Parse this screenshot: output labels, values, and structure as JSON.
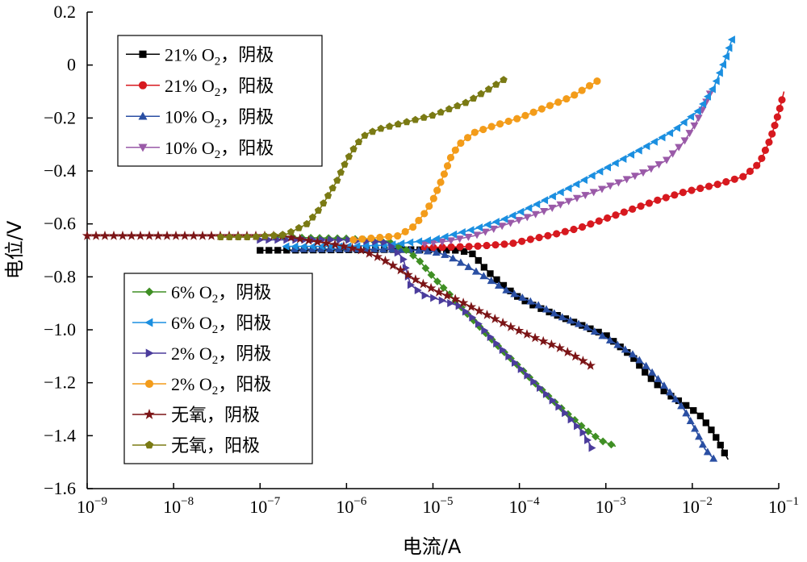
{
  "chart_data": {
    "type": "line",
    "xlabel": "电流/A",
    "ylabel": "电位/V",
    "x_scale": "log",
    "xlim": [
      1e-09,
      0.1
    ],
    "ylim": [
      -1.6,
      0.2
    ],
    "x_ticks": [
      {
        "value": 1e-09,
        "base": "10",
        "exp": "−9"
      },
      {
        "value": 1e-08,
        "base": "10",
        "exp": "−8"
      },
      {
        "value": 1e-07,
        "base": "10",
        "exp": "−7"
      },
      {
        "value": 1e-06,
        "base": "10",
        "exp": "−6"
      },
      {
        "value": 1e-05,
        "base": "10",
        "exp": "−5"
      },
      {
        "value": 0.0001,
        "base": "10",
        "exp": "−4"
      },
      {
        "value": 0.001,
        "base": "10",
        "exp": "−3"
      },
      {
        "value": 0.01,
        "base": "10",
        "exp": "−2"
      },
      {
        "value": 0.1,
        "base": "10",
        "exp": "−1"
      }
    ],
    "y_ticks": [
      {
        "value": 0.2,
        "label": "0.2"
      },
      {
        "value": 0,
        "label": "0"
      },
      {
        "value": -0.2,
        "label": "−0.2"
      },
      {
        "value": -0.4,
        "label": "−0.4"
      },
      {
        "value": -0.6,
        "label": "−0.6"
      },
      {
        "value": -0.8,
        "label": "−0.8"
      },
      {
        "value": -1.0,
        "label": "−1.0"
      },
      {
        "value": -1.2,
        "label": "−1.2"
      },
      {
        "value": -1.4,
        "label": "−1.4"
      },
      {
        "value": -1.6,
        "label": "−1.6"
      }
    ],
    "grid": false,
    "legend_groups": [
      {
        "placement": "top-left",
        "series": [
          0,
          1,
          2,
          3
        ]
      },
      {
        "placement": "bottom-left",
        "series": [
          4,
          5,
          6,
          7,
          8,
          9
        ]
      }
    ],
    "series": [
      {
        "label_pre": "21% O",
        "label_sub": "2",
        "label_post": "，阴极",
        "color": "#000000",
        "marker": "square",
        "points": [
          [
            1e-07,
            -0.7
          ],
          [
            1e-06,
            -0.698
          ],
          [
            5e-06,
            -0.697
          ],
          [
            2e-05,
            -0.7
          ],
          [
            2.8e-05,
            -0.71
          ],
          [
            3.2e-05,
            -0.73
          ],
          [
            3.8e-05,
            -0.76
          ],
          [
            5e-05,
            -0.8
          ],
          [
            7e-05,
            -0.84
          ],
          [
            0.0001,
            -0.88
          ],
          [
            0.00015,
            -0.91
          ],
          [
            0.00025,
            -0.94
          ],
          [
            0.0005,
            -0.98
          ],
          [
            0.001,
            -1.02
          ],
          [
            0.002,
            -1.1
          ],
          [
            0.003,
            -1.17
          ],
          [
            0.005,
            -1.24
          ],
          [
            0.008,
            -1.28
          ],
          [
            0.012,
            -1.32
          ],
          [
            0.016,
            -1.37
          ],
          [
            0.02,
            -1.42
          ],
          [
            0.024,
            -1.47
          ],
          [
            0.026,
            -1.49
          ]
        ]
      },
      {
        "label_pre": "21% O",
        "label_sub": "2",
        "label_post": "，阳极",
        "color": "#d7191f",
        "marker": "circle",
        "points": [
          [
            8e-06,
            -0.69
          ],
          [
            3e-05,
            -0.685
          ],
          [
            8e-05,
            -0.675
          ],
          [
            0.00015,
            -0.655
          ],
          [
            0.00025,
            -0.64
          ],
          [
            0.0005,
            -0.615
          ],
          [
            0.001,
            -0.58
          ],
          [
            0.002,
            -0.545
          ],
          [
            0.004,
            -0.51
          ],
          [
            0.008,
            -0.48
          ],
          [
            0.02,
            -0.45
          ],
          [
            0.04,
            -0.42
          ],
          [
            0.06,
            -0.37
          ],
          [
            0.08,
            -0.28
          ],
          [
            0.1,
            -0.18
          ],
          [
            0.115,
            -0.1
          ]
        ]
      },
      {
        "label_pre": "10% O",
        "label_sub": "2",
        "label_post": "，阴极",
        "color": "#2a4fa3",
        "marker": "triangle-up",
        "points": [
          [
            2.5e-07,
            -0.695
          ],
          [
            1e-06,
            -0.695
          ],
          [
            5e-06,
            -0.697
          ],
          [
            1e-05,
            -0.705
          ],
          [
            1.5e-05,
            -0.72
          ],
          [
            2.5e-05,
            -0.76
          ],
          [
            4e-05,
            -0.8
          ],
          [
            7e-05,
            -0.85
          ],
          [
            0.00015,
            -0.9
          ],
          [
            0.0003,
            -0.95
          ],
          [
            0.0006,
            -0.99
          ],
          [
            0.001,
            -1.03
          ],
          [
            0.002,
            -1.09
          ],
          [
            0.003,
            -1.14
          ],
          [
            0.005,
            -1.22
          ],
          [
            0.008,
            -1.3
          ],
          [
            0.011,
            -1.38
          ],
          [
            0.014,
            -1.45
          ],
          [
            0.018,
            -1.49
          ]
        ]
      },
      {
        "label_pre": "10% O",
        "label_sub": "2",
        "label_post": "，阳极",
        "color": "#9a5aa8",
        "marker": "triangle-down",
        "points": [
          [
            8e-06,
            -0.675
          ],
          [
            1.5e-05,
            -0.665
          ],
          [
            3e-05,
            -0.645
          ],
          [
            6e-05,
            -0.61
          ],
          [
            0.0001,
            -0.585
          ],
          [
            0.0002,
            -0.55
          ],
          [
            0.0004,
            -0.51
          ],
          [
            0.0008,
            -0.475
          ],
          [
            0.0015,
            -0.44
          ],
          [
            0.003,
            -0.4
          ],
          [
            0.005,
            -0.36
          ],
          [
            0.008,
            -0.29
          ],
          [
            0.011,
            -0.22
          ],
          [
            0.014,
            -0.15
          ],
          [
            0.017,
            -0.09
          ]
        ]
      },
      {
        "label_pre": "6% O",
        "label_sub": "2",
        "label_post": "，阴极",
        "color": "#3f8f24",
        "marker": "diamond",
        "points": [
          [
            1.5e-07,
            -0.65
          ],
          [
            1e-06,
            -0.655
          ],
          [
            3e-06,
            -0.665
          ],
          [
            5e-06,
            -0.7
          ],
          [
            7e-06,
            -0.74
          ],
          [
            1e-05,
            -0.8
          ],
          [
            1.5e-05,
            -0.86
          ],
          [
            2.5e-05,
            -0.94
          ],
          [
            4e-05,
            -1.01
          ],
          [
            6e-05,
            -1.07
          ],
          [
            0.0001,
            -1.14
          ],
          [
            0.00015,
            -1.2
          ],
          [
            0.00025,
            -1.27
          ],
          [
            0.0004,
            -1.33
          ],
          [
            0.0006,
            -1.38
          ],
          [
            0.0009,
            -1.42
          ],
          [
            0.0013,
            -1.44
          ]
        ]
      },
      {
        "label_pre": "6% O",
        "label_sub": "2",
        "label_post": "，阳极",
        "color": "#1b8fe0",
        "marker": "triangle-left",
        "points": [
          [
            2e-07,
            -0.685
          ],
          [
            1e-06,
            -0.685
          ],
          [
            3e-06,
            -0.68
          ],
          [
            1e-05,
            -0.66
          ],
          [
            3e-05,
            -0.62
          ],
          [
            7e-05,
            -0.58
          ],
          [
            0.00015,
            -0.53
          ],
          [
            0.0004,
            -0.46
          ],
          [
            0.001,
            -0.39
          ],
          [
            0.0025,
            -0.32
          ],
          [
            0.006,
            -0.25
          ],
          [
            0.012,
            -0.17
          ],
          [
            0.018,
            -0.08
          ],
          [
            0.024,
            0.02
          ],
          [
            0.029,
            0.1
          ]
        ]
      },
      {
        "label_pre": "2% O",
        "label_sub": "2",
        "label_post": "，阴极",
        "color": "#4b3c9c",
        "marker": "triangle-right",
        "points": [
          [
            1e-07,
            -0.66
          ],
          [
            1e-06,
            -0.66
          ],
          [
            3e-06,
            -0.67
          ],
          [
            4.5e-06,
            -0.73
          ],
          [
            5.5e-06,
            -0.83
          ],
          [
            8e-06,
            -0.87
          ],
          [
            1.3e-05,
            -0.89
          ],
          [
            2e-05,
            -0.91
          ],
          [
            3e-05,
            -0.96
          ],
          [
            5e-05,
            -1.04
          ],
          [
            8e-05,
            -1.11
          ],
          [
            0.00013,
            -1.18
          ],
          [
            0.0002,
            -1.24
          ],
          [
            0.00035,
            -1.32
          ],
          [
            0.00055,
            -1.39
          ],
          [
            0.0007,
            -1.45
          ]
        ]
      },
      {
        "label_pre": "2% O",
        "label_sub": "2",
        "label_post": "，阳极",
        "color": "#f39c1a",
        "marker": "circle",
        "points": [
          [
            1.2e-06,
            -0.66
          ],
          [
            4e-06,
            -0.645
          ],
          [
            6e-06,
            -0.61
          ],
          [
            8e-06,
            -0.56
          ],
          [
            1e-05,
            -0.51
          ],
          [
            1.2e-05,
            -0.45
          ],
          [
            1.4e-05,
            -0.4
          ],
          [
            1.6e-05,
            -0.35
          ],
          [
            2e-05,
            -0.3
          ],
          [
            3e-05,
            -0.255
          ],
          [
            5e-05,
            -0.23
          ],
          [
            0.0001,
            -0.2
          ],
          [
            0.0002,
            -0.16
          ],
          [
            0.0004,
            -0.12
          ],
          [
            0.0008,
            -0.06
          ]
        ]
      },
      {
        "label_pre": "无氧，阴极",
        "label_sub": "",
        "label_post": "",
        "color": "#7b1416",
        "marker": "star",
        "points": [
          [
            1e-09,
            -0.645
          ],
          [
            5e-08,
            -0.645
          ],
          [
            1.8e-07,
            -0.645
          ],
          [
            4e-07,
            -0.665
          ],
          [
            8e-07,
            -0.68
          ],
          [
            1.5e-06,
            -0.7
          ],
          [
            2.5e-06,
            -0.73
          ],
          [
            4e-06,
            -0.77
          ],
          [
            7e-06,
            -0.82
          ],
          [
            1.2e-05,
            -0.86
          ],
          [
            2e-05,
            -0.89
          ],
          [
            4e-05,
            -0.94
          ],
          [
            8e-05,
            -0.99
          ],
          [
            0.00015,
            -1.03
          ],
          [
            0.0003,
            -1.07
          ],
          [
            0.0005,
            -1.11
          ],
          [
            0.0007,
            -1.14
          ]
        ]
      },
      {
        "label_pre": "无氧，阳极",
        "label_sub": "",
        "label_post": "",
        "color": "#7a7a14",
        "marker": "pentagon",
        "points": [
          [
            3.5e-08,
            -0.65
          ],
          [
            8e-08,
            -0.65
          ],
          [
            2e-07,
            -0.64
          ],
          [
            3.5e-07,
            -0.6
          ],
          [
            5e-07,
            -0.54
          ],
          [
            6.5e-07,
            -0.48
          ],
          [
            8e-07,
            -0.43
          ],
          [
            9e-07,
            -0.39
          ],
          [
            1.05e-06,
            -0.35
          ],
          [
            1.3e-06,
            -0.3
          ],
          [
            1.7e-06,
            -0.26
          ],
          [
            2.5e-06,
            -0.24
          ],
          [
            5e-06,
            -0.215
          ],
          [
            1e-05,
            -0.19
          ],
          [
            2.5e-05,
            -0.14
          ],
          [
            4.5e-05,
            -0.09
          ],
          [
            7e-05,
            -0.05
          ]
        ]
      }
    ]
  }
}
